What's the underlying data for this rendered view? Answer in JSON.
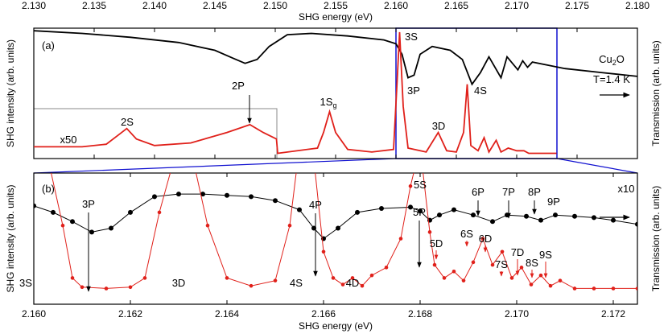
{
  "chart_data": [
    {
      "type": "line",
      "panel": "(a)",
      "x_label": "SHG energy (eV)",
      "y_label": "SHG intensity (arb. units)",
      "y2_label": "Transmission (arb. units)",
      "xlim": [
        2.13,
        2.18
      ],
      "ylim": [
        0,
        100
      ],
      "xticks": [
        {
          "value": 2.13,
          "label": "2.130"
        },
        2.135,
        {
          "value": 2.14,
          "label": "2.140"
        },
        2.145,
        {
          "value": 2.15,
          "label": "2.150"
        },
        2.155,
        {
          "value": 2.16,
          "label": "2.160"
        },
        2.165,
        {
          "value": 2.17,
          "label": "2.170"
        },
        2.175,
        {
          "value": 2.18,
          "label": "2.180"
        }
      ],
      "series": [
        {
          "color": "#000000",
          "markers": false,
          "x": [
            2.13,
            2.134,
            2.138,
            2.142,
            2.145,
            2.1465,
            2.1475,
            2.1485,
            2.1495,
            2.151,
            2.153,
            2.156,
            2.159,
            2.16,
            2.1605,
            2.161,
            2.1615,
            2.162,
            2.163,
            2.1645,
            2.1655,
            2.1663,
            2.167,
            2.1677,
            2.1687,
            2.1692,
            2.1701,
            2.1705,
            2.1709,
            2.1713,
            2.174,
            2.177,
            2.18
          ],
          "values": [
            98,
            96,
            93,
            89,
            83,
            77,
            73,
            76,
            86,
            95,
            96,
            94,
            91,
            88,
            80,
            62,
            64,
            80,
            86,
            83,
            76,
            57,
            66,
            78,
            62,
            78,
            68,
            75,
            70,
            74,
            69,
            66,
            63
          ]
        },
        {
          "color": "#e0201a",
          "markers": false,
          "x": [
            2.13,
            2.134,
            2.136,
            2.137,
            2.1377,
            2.1385,
            2.14,
            2.143,
            2.146,
            2.1479,
            2.149,
            2.1501,
            2.1502,
            2.1535,
            2.154,
            2.1545,
            2.155,
            2.156,
            2.158,
            2.1598,
            2.1601,
            2.1603,
            2.1606,
            2.161,
            2.1625,
            2.1635,
            2.1642,
            2.165,
            2.1656,
            2.1659,
            2.1662,
            2.1668,
            2.1673,
            2.1677,
            2.1683,
            2.1687,
            2.1693,
            2.17,
            2.1706,
            2.171,
            2.1733
          ],
          "values": [
            9,
            9,
            11,
            18,
            23,
            15,
            10,
            12,
            20,
            26,
            20,
            15,
            4,
            8,
            20,
            36,
            20,
            7,
            5,
            7,
            60,
            97,
            40,
            8,
            5,
            20,
            6,
            5,
            20,
            57,
            10,
            6,
            16,
            5,
            14,
            5,
            8,
            6,
            6,
            4,
            4
          ]
        }
      ],
      "annotations": [
        {
          "text": "(a)",
          "color": "#000000"
        },
        {
          "text": "Cu",
          "sub": "2",
          "after": "O",
          "color": "#000000"
        },
        {
          "text": "T=1.4 K",
          "color": "#000000"
        },
        {
          "text": "3S",
          "color": "#e0201a"
        },
        {
          "text": "3P",
          "color": "#000000"
        },
        {
          "text": "4S",
          "color": "#e0201a"
        },
        {
          "text": "2P",
          "color": "#000000"
        },
        {
          "text": "3D",
          "color": "#e0201a"
        },
        {
          "text": "2S",
          "color": "#e0201a"
        },
        {
          "text": "1S",
          "sub": "g",
          "color": "#e0201a"
        },
        {
          "text": "x50",
          "color": "#e0201a"
        }
      ]
    },
    {
      "type": "line",
      "panel": "(b)",
      "x_label": "SHG energy (eV)",
      "y_label": "SHG intensity (arb. units)",
      "y2_label": "Transmission (arb. units)",
      "xlim": [
        2.16,
        2.1725
      ],
      "ylim": [
        0,
        100
      ],
      "xticks": [
        {
          "value": 2.16,
          "label": "2.160"
        },
        2.162,
        2.164,
        2.166,
        2.168,
        {
          "value": 2.17,
          "label": "2.170"
        },
        2.172
      ],
      "series": [
        {
          "color": "#000000",
          "markers": true,
          "x": [
            2.16,
            2.1604,
            2.1608,
            2.1612,
            2.1616,
            2.162,
            2.1625,
            2.163,
            2.1635,
            2.164,
            2.1645,
            2.165,
            2.1655,
            2.1658,
            2.166,
            2.1663,
            2.1667,
            2.1672,
            2.1678,
            2.168,
            2.1682,
            2.1684,
            2.1687,
            2.1691,
            2.1695,
            2.1698,
            2.1702,
            2.1705,
            2.1708,
            2.1712,
            2.1716,
            2.172,
            2.1725
          ],
          "values": [
            75,
            70,
            63,
            55,
            58,
            70,
            82,
            84,
            84,
            83,
            82,
            79,
            72,
            58,
            50,
            58,
            70,
            73,
            74,
            71,
            64,
            68,
            72,
            68,
            63,
            68,
            67,
            64,
            68,
            67,
            66,
            64,
            61
          ]
        },
        {
          "color": "#e0201a",
          "markers": true,
          "x": [
            2.1603,
            2.1606,
            2.1608,
            2.161,
            2.1615,
            2.162,
            2.1623,
            2.1626,
            2.1629,
            2.1633,
            2.1636,
            2.164,
            2.1645,
            2.165,
            2.1653,
            2.1655,
            2.1658,
            2.166,
            2.1662,
            2.1664,
            2.1666,
            2.1668,
            2.167,
            2.1673,
            2.1676,
            2.1678,
            2.168,
            2.1682,
            2.1683,
            2.1685,
            2.1687,
            2.1689,
            2.1691,
            2.1693,
            2.1695,
            2.1697,
            2.1699,
            2.1701,
            2.1703,
            2.1705,
            2.1707,
            2.1709,
            2.1712,
            2.1716,
            2.172,
            2.1725
          ],
          "values": [
            110,
            60,
            20,
            13,
            12,
            13,
            20,
            70,
            110,
            110,
            60,
            20,
            14,
            18,
            60,
            120,
            110,
            40,
            20,
            15,
            20,
            14,
            22,
            28,
            50,
            90,
            120,
            55,
            30,
            20,
            25,
            18,
            32,
            50,
            30,
            40,
            20,
            28,
            15,
            22,
            14,
            18,
            12,
            12,
            12,
            12
          ]
        }
      ],
      "annotations": [
        {
          "text": "(b)",
          "color": "#000000"
        },
        {
          "text": "x10",
          "color": "#000000"
        },
        {
          "text": "3P",
          "color": "#000000"
        },
        {
          "text": "4P",
          "color": "#000000"
        },
        {
          "text": "5P",
          "color": "#000000"
        },
        {
          "text": "6P",
          "color": "#000000"
        },
        {
          "text": "7P",
          "color": "#000000"
        },
        {
          "text": "8P",
          "color": "#000000"
        },
        {
          "text": "9P",
          "color": "#000000"
        },
        {
          "text": "3S",
          "color": "#e0201a"
        },
        {
          "text": "3D",
          "color": "#e0201a"
        },
        {
          "text": "4S",
          "color": "#e0201a"
        },
        {
          "text": "4D",
          "color": "#e0201a"
        },
        {
          "text": "5S",
          "color": "#e0201a"
        },
        {
          "text": "5D",
          "color": "#e0201a"
        },
        {
          "text": "6S",
          "color": "#e0201a"
        },
        {
          "text": "6D",
          "color": "#e0201a"
        },
        {
          "text": "7S",
          "color": "#e0201a"
        },
        {
          "text": "7D",
          "color": "#e0201a"
        },
        {
          "text": "8S",
          "color": "#e0201a"
        },
        {
          "text": "9S",
          "color": "#e0201a"
        }
      ]
    }
  ]
}
